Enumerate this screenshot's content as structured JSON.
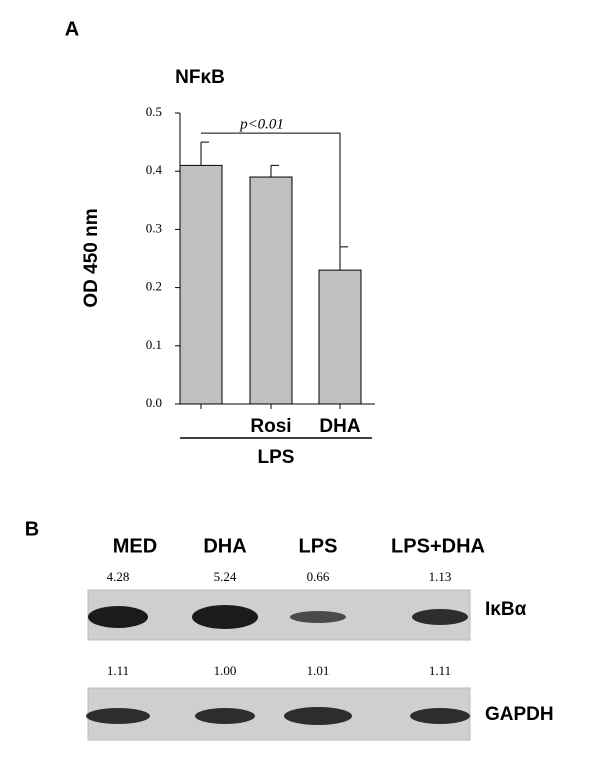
{
  "chart_data": {
    "type": "bar",
    "panel": "A",
    "title": "NFκB",
    "ylabel": "OD 450 nm",
    "categories": [
      null,
      "Rosi",
      "DHA"
    ],
    "values": [
      0.41,
      0.39,
      0.23
    ],
    "errors": [
      0.04,
      0.02,
      0.04
    ],
    "color": "#c0c0c0",
    "group_label": "LPS",
    "annotation": "p<0.01",
    "ylim": [
      0,
      0.5
    ],
    "yticks": [
      {
        "value": 0,
        "label": "0.0"
      },
      0.1,
      0.2,
      0.3,
      0.4,
      0.5
    ]
  },
  "blot": {
    "panel": "B",
    "lanes": [
      "MED",
      "DHA",
      "LPS",
      "LPS+DHA"
    ],
    "rows": [
      {
        "label": "IκBα",
        "values": [
          "4.28",
          "5.24",
          "0.66",
          "1.13"
        ]
      },
      {
        "label": "GAPDH",
        "values": [
          "1.11",
          "1.00",
          "1.01",
          "1.11"
        ]
      }
    ]
  }
}
